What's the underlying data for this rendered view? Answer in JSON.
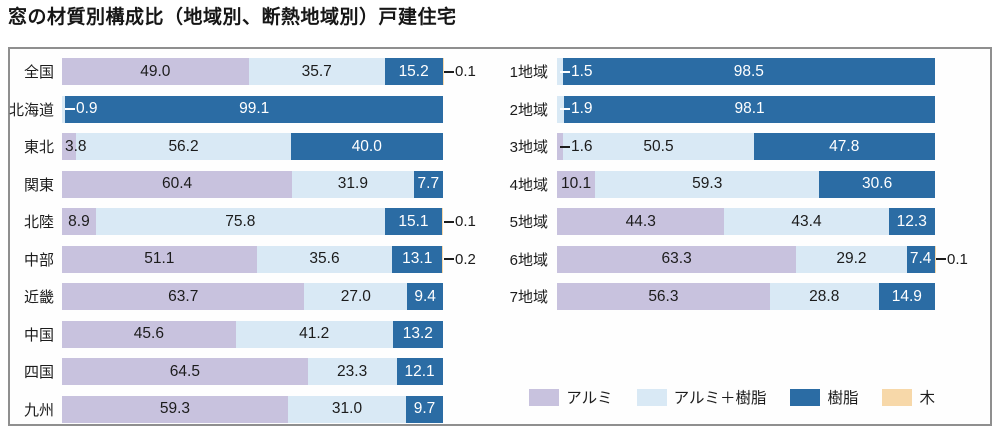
{
  "title": "窓の材質別構成比（地域別、断熱地域別）戸建住宅",
  "colors": {
    "aluminum": "#c8c2de",
    "aluminum_resin": "#d9e9f5",
    "resin": "#2b6ca4",
    "wood": "#f7d8a9",
    "text_dark": "#1c1c1c",
    "text_on_resin": "#ffffff",
    "panel_border": "#8f8f8f"
  },
  "legend": {
    "items": [
      {
        "label": "アルミ",
        "key": "aluminum",
        "color": "#c8c2de"
      },
      {
        "label": "アルミ＋樹脂",
        "key": "aluminum_resin",
        "color": "#d9e9f5"
      },
      {
        "label": "樹脂",
        "key": "resin",
        "color": "#2b6ca4"
      },
      {
        "label": "木",
        "key": "wood",
        "color": "#f7d8a9"
      }
    ]
  },
  "chart_data": [
    {
      "type": "bar",
      "orientation": "horizontal",
      "stacked": true,
      "unit": "%",
      "xlim": [
        0,
        100
      ],
      "grid": false,
      "categories": [
        "全国",
        "北海道",
        "東北",
        "関東",
        "北陸",
        "中部",
        "近畿",
        "中国",
        "四国",
        "九州"
      ],
      "series": [
        {
          "name": "アルミ",
          "key": "aluminum",
          "values": [
            49.0,
            0,
            3.8,
            60.4,
            8.9,
            51.1,
            63.7,
            45.6,
            64.5,
            59.3
          ]
        },
        {
          "name": "アルミ＋樹脂",
          "key": "aluminum_resin",
          "values": [
            35.7,
            0.9,
            56.2,
            31.9,
            75.8,
            35.6,
            27.0,
            41.2,
            23.3,
            31.0
          ]
        },
        {
          "name": "樹脂",
          "key": "resin",
          "values": [
            15.2,
            99.1,
            40.0,
            7.7,
            15.1,
            13.1,
            9.4,
            13.2,
            12.1,
            9.7
          ]
        },
        {
          "name": "木",
          "key": "wood",
          "values": [
            0.1,
            0,
            0,
            0,
            0.1,
            0.2,
            0,
            0,
            0,
            0
          ]
        }
      ]
    },
    {
      "type": "bar",
      "orientation": "horizontal",
      "stacked": true,
      "unit": "%",
      "xlim": [
        0,
        100
      ],
      "grid": false,
      "categories": [
        "1地域",
        "2地域",
        "3地域",
        "4地域",
        "5地域",
        "6地域",
        "7地域"
      ],
      "series": [
        {
          "name": "アルミ",
          "key": "aluminum",
          "values": [
            0,
            0,
            1.6,
            10.1,
            44.3,
            63.3,
            56.3
          ]
        },
        {
          "name": "アルミ＋樹脂",
          "key": "aluminum_resin",
          "values": [
            1.5,
            1.9,
            50.5,
            59.3,
            43.4,
            29.2,
            28.8
          ]
        },
        {
          "name": "樹脂",
          "key": "resin",
          "values": [
            98.5,
            98.1,
            47.8,
            30.6,
            12.3,
            7.4,
            14.9
          ]
        },
        {
          "name": "木",
          "key": "wood",
          "values": [
            0,
            0,
            0,
            0,
            0,
            0.1,
            0
          ]
        }
      ]
    }
  ]
}
